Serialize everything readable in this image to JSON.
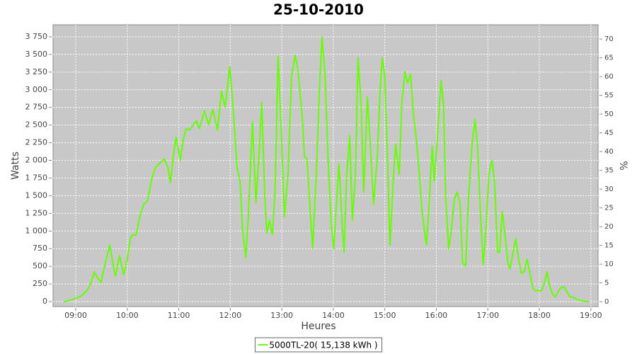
{
  "chart_data": {
    "type": "line",
    "title": "25-10-2010",
    "x_label": "Heures",
    "y_label": "Watts",
    "y2_label": "%",
    "series": [
      {
        "name": "5000TL-20( 15,138 kWh )",
        "color": "#66ff00",
        "x": [
          8.77,
          8.9,
          9.11,
          9.21,
          9.29,
          9.36,
          9.43,
          9.49,
          9.59,
          9.66,
          9.73,
          9.77,
          9.85,
          9.93,
          10.0,
          10.06,
          10.11,
          10.17,
          10.24,
          10.32,
          10.39,
          10.48,
          10.55,
          10.63,
          10.72,
          10.79,
          10.84,
          10.9,
          10.95,
          11.03,
          11.09,
          11.14,
          11.21,
          11.28,
          11.34,
          11.4,
          11.5,
          11.58,
          11.66,
          11.75,
          11.83,
          11.9,
          11.99,
          12.06,
          12.13,
          12.19,
          12.24,
          12.3,
          12.35,
          12.43,
          12.5,
          12.56,
          12.61,
          12.67,
          12.71,
          12.76,
          12.82,
          12.87,
          12.93,
          12.98,
          13.05,
          13.12,
          13.19,
          13.26,
          13.31,
          13.4,
          13.44,
          13.49,
          13.55,
          13.6,
          13.67,
          13.73,
          13.78,
          13.84,
          13.9,
          13.96,
          14.01,
          14.07,
          14.11,
          14.17,
          14.21,
          14.26,
          14.32,
          14.37,
          14.43,
          14.48,
          14.54,
          14.59,
          14.66,
          14.73,
          14.78,
          14.85,
          14.91,
          14.95,
          15.0,
          15.06,
          15.1,
          15.17,
          15.21,
          15.28,
          15.33,
          15.39,
          15.44,
          15.5,
          15.55,
          15.61,
          15.66,
          15.72,
          15.77,
          15.81,
          15.87,
          15.92,
          15.96,
          16.01,
          16.09,
          16.14,
          16.18,
          16.24,
          16.29,
          16.35,
          16.4,
          16.46,
          16.51,
          16.57,
          16.62,
          16.69,
          16.75,
          16.8,
          16.86,
          16.91,
          16.97,
          17.02,
          17.08,
          17.13,
          17.19,
          17.23,
          17.28,
          17.34,
          17.39,
          17.43,
          17.49,
          17.54,
          17.6,
          17.65,
          17.71,
          17.76,
          17.82,
          17.87,
          17.93,
          17.98,
          18.04,
          18.09,
          18.15,
          18.2,
          18.26,
          18.31,
          18.37,
          18.42,
          18.48,
          18.53,
          18.59,
          18.66,
          18.77,
          18.88,
          18.96
        ],
        "values": [
          0,
          20,
          80,
          150,
          250,
          420,
          330,
          270,
          600,
          800,
          500,
          360,
          650,
          380,
          600,
          900,
          950,
          940,
          1200,
          1380,
          1420,
          1750,
          1900,
          1960,
          2020,
          1900,
          1680,
          2100,
          2330,
          2000,
          2300,
          2450,
          2430,
          2500,
          2560,
          2450,
          2700,
          2500,
          2720,
          2430,
          2980,
          2750,
          3330,
          2700,
          1900,
          1700,
          1000,
          630,
          1200,
          2550,
          1400,
          2100,
          2820,
          1500,
          970,
          1150,
          950,
          1600,
          3470,
          2600,
          1200,
          1800,
          3200,
          3490,
          3300,
          2600,
          2050,
          2020,
          1300,
          760,
          1800,
          3000,
          3750,
          3200,
          2000,
          1100,
          750,
          1500,
          1950,
          1100,
          700,
          1800,
          2350,
          1150,
          1800,
          3450,
          2800,
          1550,
          2900,
          2100,
          1380,
          2000,
          3000,
          3450,
          3200,
          1800,
          800,
          1800,
          2230,
          1800,
          2800,
          3250,
          3100,
          3220,
          2700,
          2300,
          1900,
          1300,
          1000,
          800,
          1500,
          2200,
          1700,
          2200,
          3130,
          2800,
          1500,
          750,
          1000,
          1450,
          1550,
          1400,
          550,
          500,
          1400,
          2200,
          2580,
          2200,
          1200,
          520,
          1100,
          1800,
          2000,
          1700,
          700,
          700,
          1280,
          900,
          550,
          460,
          700,
          890,
          600,
          400,
          430,
          600,
          400,
          200,
          150,
          160,
          150,
          250,
          420,
          220,
          100,
          70,
          150,
          200,
          210,
          150,
          70,
          60,
          20,
          5,
          0
        ]
      }
    ],
    "xlim": [
      8.56,
      19.14
    ],
    "xticks": [
      {
        "value": 9,
        "label": "09:00"
      },
      {
        "value": 10,
        "label": "10:00"
      },
      {
        "value": 11,
        "label": "11:00"
      },
      {
        "value": 12,
        "label": "12:00"
      },
      {
        "value": 13,
        "label": "13:00"
      },
      {
        "value": 14,
        "label": "14:00"
      },
      {
        "value": 15,
        "label": "15:00"
      },
      {
        "value": 16,
        "label": "16:00"
      },
      {
        "value": 17,
        "label": "17:00"
      },
      {
        "value": 18,
        "label": "18:00"
      },
      {
        "value": 19,
        "label": "19:00"
      }
    ],
    "ylim": [
      -70,
      3920
    ],
    "yticks": [
      0,
      250,
      500,
      750,
      {
        "value": 1000,
        "label": "1 000"
      },
      {
        "value": 1250,
        "label": "1 250"
      },
      {
        "value": 1500,
        "label": "1 500"
      },
      {
        "value": 1750,
        "label": "1 750"
      },
      {
        "value": 2000,
        "label": "2 000"
      },
      {
        "value": 2250,
        "label": "2 250"
      },
      {
        "value": 2500,
        "label": "2 500"
      },
      {
        "value": 2750,
        "label": "2 750"
      },
      {
        "value": 3000,
        "label": "3 000"
      },
      {
        "value": 3250,
        "label": "3 250"
      },
      {
        "value": 3500,
        "label": "3 500"
      },
      {
        "value": 3750,
        "label": "3 750"
      }
    ],
    "y2lim": [
      -1.3,
      73.8
    ],
    "y2ticks": [
      0,
      5,
      10,
      15,
      20,
      25,
      30,
      35,
      40,
      45,
      50,
      55,
      60,
      65,
      70
    ],
    "grid": true,
    "legend": "bottom",
    "plot_background": "#c8c8c8"
  }
}
